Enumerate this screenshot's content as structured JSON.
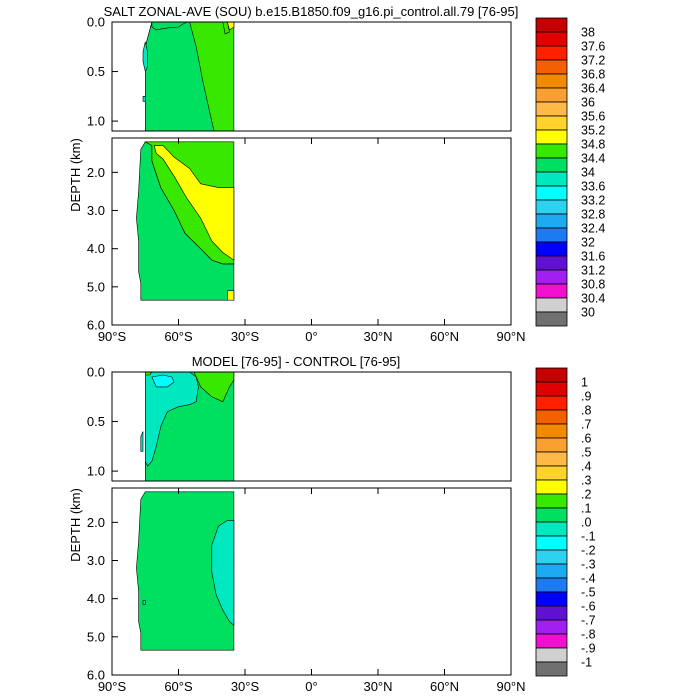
{
  "chart_data": [
    {
      "type": "heatmap",
      "title": "SALT ZONAL-AVE (SOU) b.e15.B1850.f09_g16.pi_control.all.79 [76-95]",
      "xlabel": "",
      "ylabel": "DEPTH (km)",
      "xlim": [
        -90,
        90
      ],
      "ylim": [
        0,
        6
      ],
      "x_ticks": [
        "90°S",
        "60°S",
        "30°S",
        "0°",
        "30°N",
        "60°N",
        "90°N"
      ],
      "upper_y_ticks": [
        "0.0",
        "0.5",
        "1.0"
      ],
      "lower_y_ticks": [
        "2.0",
        "3.0",
        "4.0",
        "5.0",
        "6.0"
      ],
      "grid": false,
      "legend": "right",
      "colorbar": {
        "labels": [
          "38",
          "37.6",
          "37.2",
          "36.8",
          "36.4",
          "36",
          "35.6",
          "35.2",
          "34.8",
          "34.4",
          "34",
          "33.6",
          "33.2",
          "32.8",
          "32.4",
          "32",
          "31.6",
          "31.2",
          "30.8",
          "30.4",
          "30"
        ],
        "colors": [
          "#c40000",
          "#e00000",
          "#ff2000",
          "#f26000",
          "#f28a00",
          "#f9a030",
          "#ffb947",
          "#ffd32b",
          "#ffff00",
          "#38e800",
          "#00e060",
          "#00e8c0",
          "#00ffff",
          "#2ed2f0",
          "#1eaaf0",
          "#1e7af0",
          "#0000ff",
          "#6010d0",
          "#a020f0",
          "#f010d0",
          "#d0d0d0",
          "#707070"
        ]
      },
      "regions": [
        {
          "label": "34.4-34.8",
          "color": "#38e800",
          "points": [
            [
              -75,
              1.1
            ],
            [
              -75,
              0.25
            ],
            [
              -72,
              0
            ],
            [
              -35,
              0
            ],
            [
              -35,
              1.1
            ]
          ]
        },
        {
          "label": "34.0-34.4",
          "color": "#00e060",
          "points": [
            [
              -72,
              0
            ],
            [
              -55,
              0
            ],
            [
              -52,
              0.25
            ],
            [
              -49,
              0.6
            ],
            [
              -46,
              0.9
            ],
            [
              -44,
              1.1
            ],
            [
              -75,
              1.1
            ],
            [
              -75,
              0.25
            ]
          ]
        },
        {
          "label": "34.0-34.4",
          "color": "#00e060",
          "points": [
            [
              -72,
              0.05
            ],
            [
              -70,
              0.08
            ],
            [
              -65,
              0.06
            ],
            [
              -60,
              0.05
            ],
            [
              -58,
              0.02
            ],
            [
              -56,
              0
            ],
            [
              -72,
              0
            ]
          ]
        },
        {
          "label": "33.6-34.0",
          "color": "#00e8c0",
          "points": [
            [
              -75,
              0.2
            ],
            [
              -76,
              0.3
            ],
            [
              -76,
              0.4
            ],
            [
              -75,
              0.5
            ],
            [
              -74,
              0.45
            ],
            [
              -74,
              0.3
            ]
          ]
        },
        {
          "label": "33.6-34.0",
          "color": "#00e8c0",
          "points": [
            [
              -76,
              0.75
            ],
            [
              -76,
              0.8
            ],
            [
              -75,
              0.8
            ],
            [
              -75,
              0.75
            ]
          ]
        },
        {
          "label": "34.8-35.2",
          "color": "#ffff00",
          "points": [
            [
              -38,
              0
            ],
            [
              -35,
              0
            ],
            [
              -35,
              0.05
            ],
            [
              -37,
              0.08
            ]
          ]
        },
        {
          "label": "34.4-34.8",
          "color": "#38e800",
          "points": [
            [
              -40,
              0
            ],
            [
              -38,
              0
            ],
            [
              -37,
              0.1
            ],
            [
              -39,
              0.12
            ]
          ]
        },
        {
          "label": "34.0-34.4",
          "color": "#00e060",
          "points": [
            [
              -77,
              5.35
            ],
            [
              -77,
              4.9
            ],
            [
              -78,
              4.6
            ],
            [
              -78,
              3.8
            ],
            [
              -79,
              3.2
            ],
            [
              -78,
              2.5
            ],
            [
              -77,
              1.4
            ],
            [
              -75,
              1.2
            ],
            [
              -72,
              1.2
            ],
            [
              -72,
              1.7
            ],
            [
              -68,
              2.4
            ],
            [
              -62,
              3.0
            ],
            [
              -57,
              3.6
            ],
            [
              -50,
              4.0
            ],
            [
              -45,
              4.3
            ],
            [
              -40,
              4.4
            ],
            [
              -35,
              4.4
            ],
            [
              -35,
              5.35
            ]
          ]
        },
        {
          "label": "34.4-34.8",
          "color": "#38e800",
          "points": [
            [
              -75,
              1.2
            ],
            [
              -35,
              1.2
            ],
            [
              -35,
              4.4
            ],
            [
              -40,
              4.4
            ],
            [
              -45,
              4.3
            ],
            [
              -50,
              4.0
            ],
            [
              -57,
              3.6
            ],
            [
              -62,
              3.0
            ],
            [
              -68,
              2.4
            ],
            [
              -72,
              1.7
            ],
            [
              -72,
              1.3
            ]
          ]
        },
        {
          "label": "34.8-35.2",
          "color": "#ffff00",
          "points": [
            [
              -71,
              1.3
            ],
            [
              -67,
              1.3
            ],
            [
              -62,
              1.6
            ],
            [
              -55,
              1.9
            ],
            [
              -50,
              2.3
            ],
            [
              -42,
              2.4
            ],
            [
              -35,
              2.4
            ],
            [
              -35,
              4.3
            ],
            [
              -40,
              4.1
            ],
            [
              -45,
              3.8
            ],
            [
              -50,
              3.2
            ],
            [
              -56,
              2.7
            ],
            [
              -62,
              2.1
            ],
            [
              -67,
              1.65
            ],
            [
              -70,
              1.5
            ]
          ]
        },
        {
          "label": "34.8-35.2",
          "color": "#ffff00",
          "points": [
            [
              -38,
              5.1
            ],
            [
              -35,
              5.1
            ],
            [
              -35,
              5.35
            ],
            [
              -38,
              5.35
            ]
          ]
        }
      ]
    },
    {
      "type": "heatmap",
      "title": "MODEL [76-95] - CONTROL [76-95]",
      "xlabel": "",
      "ylabel": "DEPTH (km)",
      "xlim": [
        -90,
        90
      ],
      "ylim": [
        0,
        6
      ],
      "x_ticks": [
        "90°S",
        "60°S",
        "30°S",
        "0°",
        "30°N",
        "60°N",
        "90°N"
      ],
      "upper_y_ticks": [
        "0.0",
        "0.5",
        "1.0"
      ],
      "lower_y_ticks": [
        "2.0",
        "3.0",
        "4.0",
        "5.0",
        "6.0"
      ],
      "grid": false,
      "legend": "right",
      "colorbar": {
        "labels": [
          "1",
          ".9",
          ".8",
          ".7",
          ".6",
          ".5",
          ".4",
          ".3",
          ".2",
          ".1",
          ".0",
          "-.1",
          "-.2",
          "-.3",
          "-.4",
          "-.5",
          "-.6",
          "-.7",
          "-.8",
          "-.9",
          "-1"
        ],
        "colors": [
          "#c40000",
          "#e00000",
          "#ff2000",
          "#f26000",
          "#f28a00",
          "#f9a030",
          "#ffb947",
          "#ffd32b",
          "#ffff00",
          "#38e800",
          "#00e060",
          "#00e8c0",
          "#00ffff",
          "#2ed2f0",
          "#1eaaf0",
          "#1e7af0",
          "#0000ff",
          "#6010d0",
          "#a020f0",
          "#f010d0",
          "#d0d0d0",
          "#707070"
        ]
      },
      "regions": [
        {
          "label": "0.0-0.1",
          "color": "#00e060",
          "points": [
            [
              -75,
              1.1
            ],
            [
              -75,
              0
            ],
            [
              -35,
              0
            ],
            [
              -35,
              1.1
            ]
          ]
        },
        {
          "label": "-0.1-0.0",
          "color": "#00e8c0",
          "points": [
            [
              -75,
              0
            ],
            [
              -55,
              0
            ],
            [
              -52,
              0.05
            ],
            [
              -51,
              0.15
            ],
            [
              -52,
              0.3
            ],
            [
              -55,
              0.33
            ],
            [
              -60,
              0.35
            ],
            [
              -65,
              0.4
            ],
            [
              -68,
              0.55
            ],
            [
              -70,
              0.75
            ],
            [
              -72,
              0.9
            ],
            [
              -74,
              0.95
            ],
            [
              -75,
              0.9
            ]
          ]
        },
        {
          "label": "-0.1-0.0",
          "color": "#00e8c0",
          "points": [
            [
              -77,
              0.8
            ],
            [
              -77,
              0.65
            ],
            [
              -76,
              0.6
            ],
            [
              -76,
              0.8
            ]
          ]
        },
        {
          "label": "-0.2--0.1",
          "color": "#00ffff",
          "points": [
            [
              -72,
              0.05
            ],
            [
              -67,
              0.03
            ],
            [
              -63,
              0.05
            ],
            [
              -62,
              0.1
            ],
            [
              -65,
              0.15
            ],
            [
              -70,
              0.15
            ]
          ]
        },
        {
          "label": "0.1-0.2",
          "color": "#38e800",
          "points": [
            [
              -53,
              0
            ],
            [
              -35,
              0
            ],
            [
              -35,
              0.08
            ],
            [
              -37,
              0.15
            ],
            [
              -40,
              0.3
            ],
            [
              -45,
              0.25
            ],
            [
              -50,
              0.15
            ],
            [
              -52,
              0.05
            ]
          ]
        },
        {
          "label": "0.1-0.2",
          "color": "#38e800",
          "points": [
            [
              -75,
              0
            ],
            [
              -72,
              0
            ],
            [
              -73,
              0.03
            ],
            [
              -75,
              0.03
            ]
          ]
        },
        {
          "label": "0.0-0.1",
          "color": "#00e060",
          "points": [
            [
              -77,
              5.35
            ],
            [
              -77,
              4.9
            ],
            [
              -78,
              4.6
            ],
            [
              -78,
              3.8
            ],
            [
              -79,
              3.2
            ],
            [
              -78,
              2.5
            ],
            [
              -77,
              1.4
            ],
            [
              -75,
              1.2
            ],
            [
              -35,
              1.2
            ],
            [
              -35,
              5.35
            ]
          ]
        },
        {
          "label": "-0.1-0.0",
          "color": "#00e8c0",
          "points": [
            [
              -35,
              1.95
            ],
            [
              -38,
              1.95
            ],
            [
              -42,
              2.1
            ],
            [
              -45,
              2.6
            ],
            [
              -45,
              3.3
            ],
            [
              -43,
              3.9
            ],
            [
              -40,
              4.3
            ],
            [
              -37,
              4.6
            ],
            [
              -35,
              4.7
            ]
          ]
        },
        {
          "label": "-0.1-0.0",
          "color": "#00e8c0",
          "points": [
            [
              -76,
              4.05
            ],
            [
              -75,
              4.05
            ],
            [
              -75,
              4.15
            ],
            [
              -76,
              4.15
            ]
          ]
        }
      ]
    }
  ]
}
